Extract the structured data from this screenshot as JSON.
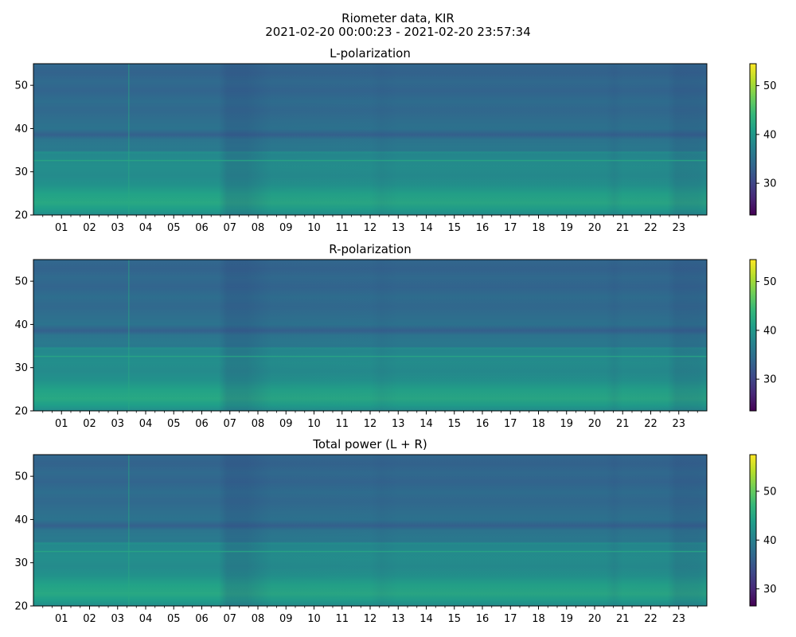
{
  "figure": {
    "title_line1": "Riometer data, KIR",
    "title_line2": "2021-02-20 00:00:23 - 2021-02-20 23:57:34"
  },
  "chart_data": [
    {
      "type": "heatmap",
      "title": "L-polarization",
      "xlabel": "",
      "ylabel": "",
      "xlim": [
        0,
        24
      ],
      "ylim": [
        20,
        55
      ],
      "x_tick_labels": [
        "01",
        "02",
        "03",
        "04",
        "05",
        "06",
        "07",
        "08",
        "09",
        "10",
        "11",
        "12",
        "13",
        "14",
        "15",
        "16",
        "17",
        "18",
        "19",
        "20",
        "21",
        "22",
        "23"
      ],
      "y_ticks": [
        20,
        30,
        40,
        50
      ],
      "colorbar": {
        "range": [
          23.5,
          54.5
        ],
        "ticks": [
          30,
          40,
          50
        ]
      },
      "colormap": [
        "#440154",
        "#482878",
        "#3e4989",
        "#31688e",
        "#26828e",
        "#1f9e89",
        "#35b779",
        "#6ece58",
        "#b5de2b",
        "#fde725"
      ],
      "value_range_shown": [
        32,
        43
      ]
    },
    {
      "type": "heatmap",
      "title": "R-polarization",
      "xlabel": "",
      "ylabel": "",
      "xlim": [
        0,
        24
      ],
      "ylim": [
        20,
        55
      ],
      "x_tick_labels": [
        "01",
        "02",
        "03",
        "04",
        "05",
        "06",
        "07",
        "08",
        "09",
        "10",
        "11",
        "12",
        "13",
        "14",
        "15",
        "16",
        "17",
        "18",
        "19",
        "20",
        "21",
        "22",
        "23"
      ],
      "y_ticks": [
        20,
        30,
        40,
        50
      ],
      "colorbar": {
        "range": [
          23.5,
          54.5
        ],
        "ticks": [
          30,
          40,
          50
        ]
      },
      "colormap": [
        "#440154",
        "#482878",
        "#3e4989",
        "#31688e",
        "#26828e",
        "#1f9e89",
        "#35b779",
        "#6ece58",
        "#b5de2b",
        "#fde725"
      ],
      "value_range_shown": [
        32,
        43
      ]
    },
    {
      "type": "heatmap",
      "title": "Total power (L + R)",
      "xlabel": "",
      "ylabel": "",
      "xlim": [
        0,
        24
      ],
      "ylim": [
        20,
        55
      ],
      "x_tick_labels": [
        "01",
        "02",
        "03",
        "04",
        "05",
        "06",
        "07",
        "08",
        "09",
        "10",
        "11",
        "12",
        "13",
        "14",
        "15",
        "16",
        "17",
        "18",
        "19",
        "20",
        "21",
        "22",
        "23"
      ],
      "y_ticks": [
        20,
        30,
        40,
        50
      ],
      "colorbar": {
        "range": [
          26.5,
          57.5
        ],
        "ticks": [
          30,
          40,
          50
        ]
      },
      "colormap": [
        "#440154",
        "#482878",
        "#3e4989",
        "#31688e",
        "#26828e",
        "#1f9e89",
        "#35b779",
        "#6ece58",
        "#b5de2b",
        "#fde725"
      ],
      "value_range_shown": [
        35,
        46
      ]
    }
  ]
}
